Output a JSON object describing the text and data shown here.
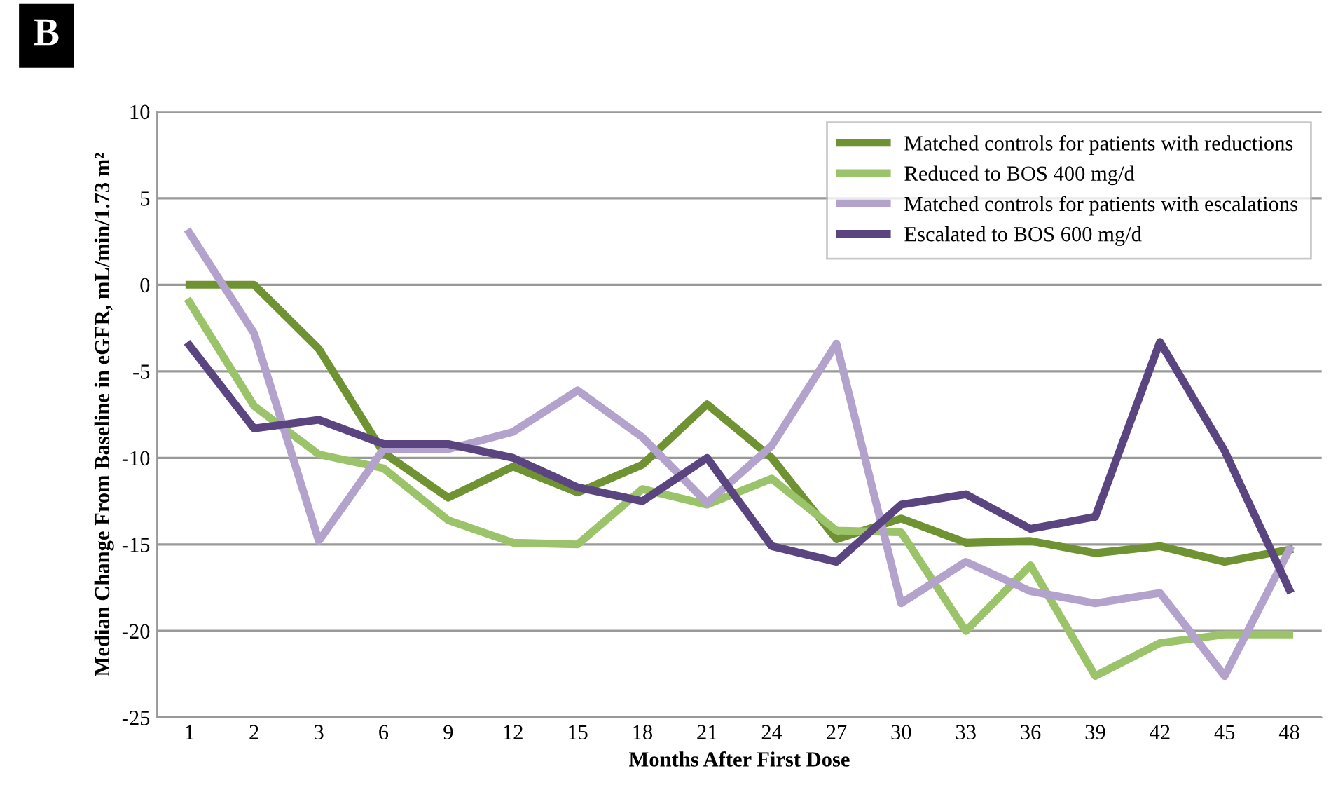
{
  "chart_data": {
    "type": "line",
    "xlabel": "Months After First Dose",
    "ylabel": "Median Change From Baseline in eGFR, mL/min/1.73 m²",
    "annotations": [
      "B"
    ],
    "categories": [
      "1",
      "2",
      "3",
      "6",
      "9",
      "12",
      "15",
      "18",
      "21",
      "24",
      "27",
      "30",
      "33",
      "36",
      "39",
      "42",
      "45",
      "48"
    ],
    "ylim": [
      -25,
      10
    ],
    "yticks": [
      -25,
      -20,
      -15,
      -10,
      -5,
      0,
      5,
      10
    ],
    "grid": "y",
    "legend": "top right",
    "marker": "none",
    "line_style": "solid",
    "series": [
      {
        "name": "Matched controls for patients with reductions",
        "color": "#6f9232",
        "values": [
          0,
          0,
          -3.7,
          -9.7,
          -12.3,
          -10.5,
          -12,
          -10.4,
          -6.9,
          -10,
          -14.7,
          -13.5,
          -14.9,
          -14.8,
          -15.5,
          -15.1,
          -16,
          -15.3
        ]
      },
      {
        "name": "Reduced to BOS 400 mg/d",
        "color": "#9bc46a",
        "values": [
          -1,
          -7,
          -9.8,
          -10.6,
          -13.6,
          -14.9,
          -15,
          -11.8,
          -12.7,
          -11.2,
          -14.2,
          -14.3,
          -20,
          -16.2,
          -22.6,
          -20.7,
          -20.2,
          -20.2
        ]
      },
      {
        "name": "Matched controls for patients with escalations",
        "color": "#b3a2cc",
        "values": [
          3,
          -2.8,
          -14.8,
          -9.5,
          -9.5,
          -8.5,
          -6.1,
          -8.8,
          -12.6,
          -9.3,
          -3.4,
          -18.4,
          -16,
          -17.7,
          -18.4,
          -17.8,
          -22.6,
          -15.3
        ]
      },
      {
        "name": "Escalated to BOS 600 mg/d",
        "color": "#5a4580",
        "values": [
          -3.5,
          -8.3,
          -7.8,
          -9.2,
          -9.2,
          -10,
          -11.7,
          -12.5,
          -10,
          -15.1,
          -16,
          -12.7,
          -12.1,
          -14.1,
          -13.4,
          -3.3,
          -9.6,
          -17.6
        ]
      }
    ]
  }
}
